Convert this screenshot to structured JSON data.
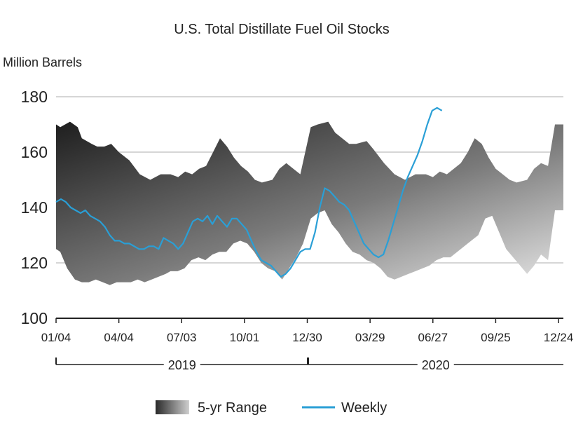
{
  "chart_data": {
    "type": "area",
    "title": "U.S. Total Distillate Fuel Oil Stocks",
    "ylabel": "Million Barrels",
    "ylim": [
      100,
      180
    ],
    "yticks": [
      "100",
      "120",
      "140",
      "160",
      "180"
    ],
    "grid": true,
    "xlim": [
      "2019-01-04",
      "2020-12-31"
    ],
    "xticks": [
      {
        "date": "2019-01-04",
        "label": "01/04"
      },
      {
        "date": "2019-04-04",
        "label": "04/04"
      },
      {
        "date": "2019-07-03",
        "label": "07/03"
      },
      {
        "date": "2019-10-01",
        "label": "10/01"
      },
      {
        "date": "2019-12-30",
        "label": "12/30"
      },
      {
        "date": "2020-03-29",
        "label": "03/29"
      },
      {
        "date": "2020-06-27",
        "label": "06/27"
      },
      {
        "date": "2020-09-25",
        "label": "09/25"
      },
      {
        "date": "2020-12-24",
        "label": "12/24"
      }
    ],
    "year_labels": [
      "2019",
      "2020"
    ],
    "legend_position": "bottom",
    "series": [
      {
        "name": "5-yr Range",
        "color": "#555555",
        "high": [
          [
            "2019-01-04",
            170
          ],
          [
            "2019-01-10",
            169
          ],
          [
            "2019-01-24",
            171
          ],
          [
            "2019-02-04",
            169
          ],
          [
            "2019-02-10",
            165
          ],
          [
            "2019-02-24",
            163
          ],
          [
            "2019-03-04",
            162
          ],
          [
            "2019-03-14",
            162
          ],
          [
            "2019-03-24",
            163
          ],
          [
            "2019-04-04",
            160
          ],
          [
            "2019-04-19",
            157
          ],
          [
            "2019-05-04",
            152
          ],
          [
            "2019-05-19",
            150
          ],
          [
            "2019-06-03",
            152
          ],
          [
            "2019-06-17",
            152
          ],
          [
            "2019-06-28",
            151
          ],
          [
            "2019-07-08",
            153
          ],
          [
            "2019-07-18",
            152
          ],
          [
            "2019-07-28",
            154
          ],
          [
            "2019-08-07",
            155
          ],
          [
            "2019-08-17",
            160
          ],
          [
            "2019-08-27",
            165
          ],
          [
            "2019-09-06",
            162
          ],
          [
            "2019-09-16",
            158
          ],
          [
            "2019-09-26",
            155
          ],
          [
            "2019-10-06",
            153
          ],
          [
            "2019-10-16",
            150
          ],
          [
            "2019-10-26",
            149
          ],
          [
            "2019-11-10",
            150
          ],
          [
            "2019-11-20",
            154
          ],
          [
            "2019-11-30",
            156
          ],
          [
            "2019-12-10",
            154
          ],
          [
            "2019-12-20",
            152
          ],
          [
            "2020-01-04",
            169
          ],
          [
            "2020-01-14",
            170
          ],
          [
            "2020-01-29",
            171
          ],
          [
            "2020-02-08",
            167
          ],
          [
            "2020-02-18",
            165
          ],
          [
            "2020-02-28",
            163
          ],
          [
            "2020-03-09",
            163
          ],
          [
            "2020-03-24",
            164
          ],
          [
            "2020-04-03",
            161
          ],
          [
            "2020-04-18",
            156
          ],
          [
            "2020-05-03",
            152
          ],
          [
            "2020-05-18",
            150
          ],
          [
            "2020-06-02",
            152
          ],
          [
            "2020-06-17",
            152
          ],
          [
            "2020-06-27",
            151
          ],
          [
            "2020-07-07",
            153
          ],
          [
            "2020-07-17",
            152
          ],
          [
            "2020-07-27",
            154
          ],
          [
            "2020-08-06",
            156
          ],
          [
            "2020-08-16",
            160
          ],
          [
            "2020-08-26",
            165
          ],
          [
            "2020-09-05",
            163
          ],
          [
            "2020-09-15",
            158
          ],
          [
            "2020-09-25",
            154
          ],
          [
            "2020-10-05",
            152
          ],
          [
            "2020-10-15",
            150
          ],
          [
            "2020-10-25",
            149
          ],
          [
            "2020-11-09",
            150
          ],
          [
            "2020-11-19",
            154
          ],
          [
            "2020-11-29",
            156
          ],
          [
            "2020-12-09",
            155
          ],
          [
            "2020-12-19",
            170
          ],
          [
            "2020-12-31",
            170
          ]
        ],
        "low": [
          [
            "2019-01-04",
            125
          ],
          [
            "2019-01-10",
            124
          ],
          [
            "2019-01-20",
            118
          ],
          [
            "2019-01-31",
            114
          ],
          [
            "2019-02-10",
            113
          ],
          [
            "2019-02-20",
            113
          ],
          [
            "2019-03-02",
            114
          ],
          [
            "2019-03-12",
            113
          ],
          [
            "2019-03-22",
            112
          ],
          [
            "2019-04-01",
            113
          ],
          [
            "2019-04-11",
            113
          ],
          [
            "2019-04-21",
            113
          ],
          [
            "2019-05-01",
            114
          ],
          [
            "2019-05-11",
            113
          ],
          [
            "2019-05-21",
            114
          ],
          [
            "2019-05-31",
            115
          ],
          [
            "2019-06-10",
            116
          ],
          [
            "2019-06-17",
            117
          ],
          [
            "2019-06-27",
            117
          ],
          [
            "2019-07-07",
            118
          ],
          [
            "2019-07-17",
            121
          ],
          [
            "2019-07-27",
            122
          ],
          [
            "2019-08-06",
            121
          ],
          [
            "2019-08-16",
            123
          ],
          [
            "2019-08-26",
            124
          ],
          [
            "2019-09-05",
            124
          ],
          [
            "2019-09-15",
            127
          ],
          [
            "2019-09-25",
            128
          ],
          [
            "2019-10-05",
            127
          ],
          [
            "2019-10-15",
            124
          ],
          [
            "2019-10-25",
            120
          ],
          [
            "2019-11-04",
            118
          ],
          [
            "2019-11-14",
            117
          ],
          [
            "2019-11-24",
            114
          ],
          [
            "2019-12-04",
            118
          ],
          [
            "2019-12-14",
            122
          ],
          [
            "2019-12-24",
            127
          ],
          [
            "2020-01-04",
            136
          ],
          [
            "2020-01-14",
            138
          ],
          [
            "2020-01-24",
            139
          ],
          [
            "2020-02-03",
            134
          ],
          [
            "2020-02-13",
            131
          ],
          [
            "2020-02-23",
            127
          ],
          [
            "2020-03-04",
            124
          ],
          [
            "2020-03-14",
            123
          ],
          [
            "2020-03-24",
            121
          ],
          [
            "2020-04-03",
            120
          ],
          [
            "2020-04-13",
            118
          ],
          [
            "2020-04-23",
            115
          ],
          [
            "2020-05-03",
            114
          ],
          [
            "2020-05-13",
            115
          ],
          [
            "2020-05-23",
            116
          ],
          [
            "2020-06-02",
            117
          ],
          [
            "2020-06-12",
            118
          ],
          [
            "2020-06-22",
            119
          ],
          [
            "2020-07-02",
            121
          ],
          [
            "2020-07-12",
            122
          ],
          [
            "2020-07-22",
            122
          ],
          [
            "2020-08-01",
            124
          ],
          [
            "2020-08-11",
            126
          ],
          [
            "2020-08-21",
            128
          ],
          [
            "2020-08-31",
            130
          ],
          [
            "2020-09-10",
            136
          ],
          [
            "2020-09-20",
            137
          ],
          [
            "2020-09-30",
            131
          ],
          [
            "2020-10-10",
            125
          ],
          [
            "2020-10-20",
            122
          ],
          [
            "2020-10-30",
            119
          ],
          [
            "2020-11-09",
            116
          ],
          [
            "2020-11-19",
            119
          ],
          [
            "2020-11-29",
            123
          ],
          [
            "2020-12-09",
            121
          ],
          [
            "2020-12-19",
            139
          ],
          [
            "2020-12-31",
            139
          ]
        ]
      },
      {
        "name": "Weekly",
        "color": "#2a9fd6",
        "values": [
          [
            "2019-01-04",
            142
          ],
          [
            "2019-01-11",
            143
          ],
          [
            "2019-01-18",
            142
          ],
          [
            "2019-01-25",
            140
          ],
          [
            "2019-02-01",
            139
          ],
          [
            "2019-02-08",
            138
          ],
          [
            "2019-02-15",
            139
          ],
          [
            "2019-02-22",
            137
          ],
          [
            "2019-03-01",
            136
          ],
          [
            "2019-03-08",
            135
          ],
          [
            "2019-03-15",
            133
          ],
          [
            "2019-03-22",
            130
          ],
          [
            "2019-03-29",
            128
          ],
          [
            "2019-04-05",
            128
          ],
          [
            "2019-04-12",
            127
          ],
          [
            "2019-04-19",
            127
          ],
          [
            "2019-04-26",
            126
          ],
          [
            "2019-05-03",
            125
          ],
          [
            "2019-05-10",
            125
          ],
          [
            "2019-05-17",
            126
          ],
          [
            "2019-05-24",
            126
          ],
          [
            "2019-05-31",
            125
          ],
          [
            "2019-06-07",
            129
          ],
          [
            "2019-06-14",
            128
          ],
          [
            "2019-06-21",
            127
          ],
          [
            "2019-06-28",
            125
          ],
          [
            "2019-07-05",
            127
          ],
          [
            "2019-07-12",
            131
          ],
          [
            "2019-07-19",
            135
          ],
          [
            "2019-07-26",
            136
          ],
          [
            "2019-08-02",
            135
          ],
          [
            "2019-08-09",
            137
          ],
          [
            "2019-08-16",
            134
          ],
          [
            "2019-08-23",
            137
          ],
          [
            "2019-08-30",
            135
          ],
          [
            "2019-09-06",
            133
          ],
          [
            "2019-09-13",
            136
          ],
          [
            "2019-09-20",
            136
          ],
          [
            "2019-09-27",
            134
          ],
          [
            "2019-10-04",
            132
          ],
          [
            "2019-10-11",
            128
          ],
          [
            "2019-10-18",
            124
          ],
          [
            "2019-10-25",
            121
          ],
          [
            "2019-11-01",
            120
          ],
          [
            "2019-11-08",
            119
          ],
          [
            "2019-11-15",
            117
          ],
          [
            "2019-11-22",
            115
          ],
          [
            "2019-11-29",
            116
          ],
          [
            "2019-12-06",
            118
          ],
          [
            "2019-12-13",
            121
          ],
          [
            "2019-12-20",
            124
          ],
          [
            "2019-12-27",
            125
          ],
          [
            "2020-01-03",
            125
          ],
          [
            "2020-01-10",
            131
          ],
          [
            "2020-01-17",
            140
          ],
          [
            "2020-01-24",
            147
          ],
          [
            "2020-01-31",
            146
          ],
          [
            "2020-02-07",
            144
          ],
          [
            "2020-02-14",
            142
          ],
          [
            "2020-02-21",
            141
          ],
          [
            "2020-02-28",
            139
          ],
          [
            "2020-03-06",
            135
          ],
          [
            "2020-03-13",
            131
          ],
          [
            "2020-03-20",
            127
          ],
          [
            "2020-03-27",
            125
          ],
          [
            "2020-04-03",
            123
          ],
          [
            "2020-04-10",
            122
          ],
          [
            "2020-04-17",
            123
          ],
          [
            "2020-04-24",
            128
          ],
          [
            "2020-05-01",
            134
          ],
          [
            "2020-05-08",
            140
          ],
          [
            "2020-05-15",
            146
          ],
          [
            "2020-05-22",
            151
          ],
          [
            "2020-05-29",
            155
          ],
          [
            "2020-06-05",
            159
          ],
          [
            "2020-06-12",
            164
          ],
          [
            "2020-06-19",
            170
          ],
          [
            "2020-06-26",
            175
          ],
          [
            "2020-07-03",
            176
          ],
          [
            "2020-07-10",
            175
          ]
        ]
      }
    ]
  }
}
